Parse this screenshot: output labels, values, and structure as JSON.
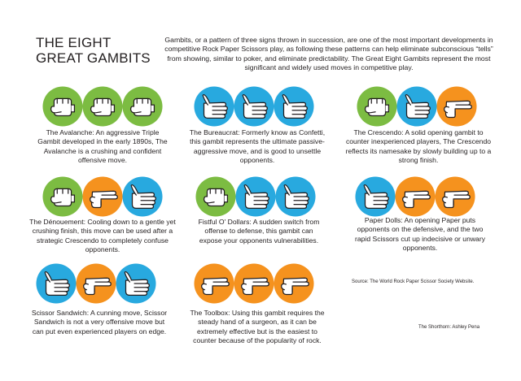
{
  "title": "THE EIGHT GREAT GAMBITS",
  "intro": "Gambits, or a pattern of three signs thrown in succession, are one of the most important developments in competitive Rock Paper Scissors play, as following these patterns can help eliminate subconscious “tells” from showing, similar to poker, and eliminate predictability. The Great Eight Gambits represent the most significant and widely used moves in competitive play.",
  "colors": {
    "rock": "#7cbc42",
    "paper": "#28a9df",
    "scissors": "#f5921e",
    "text": "#231f20"
  },
  "gambits": [
    {
      "description": "The Avalanche: An aggressive Triple Gambit developed in the early 1890s, The Avalanche is a crushing and confident offensive move.",
      "signs": [
        "rock",
        "rock",
        "rock"
      ]
    },
    {
      "description": "The Bureaucrat: Formerly know as Confetti, this gambit represents the ultimate passive-aggressive move, and is good to unsettle opponents.",
      "signs": [
        "paper",
        "paper",
        "paper"
      ]
    },
    {
      "description": "The Crescendo: A solid opening gambit to counter inexperienced players, The Crescendo reflects its namesake by slowly building up to a strong finish.",
      "signs": [
        "rock",
        "paper",
        "scissors"
      ]
    },
    {
      "description": "The Dénouement: Cooling down to a gentle yet crushing finish, this move can be used after a strategic Crescendo to completely confuse opponents.",
      "signs": [
        "rock",
        "scissors",
        "paper"
      ]
    },
    {
      "description": "Fistful O' Dollars: A sudden switch from offense to defense, this gambit can expose your opponents vulnerabilities.",
      "signs": [
        "rock",
        "paper",
        "paper"
      ]
    },
    {
      "description": "Paper Dolls: An opening Paper puts opponents on the defensive, and the two rapid Scissors cut up indecisive or unwary opponents.",
      "signs": [
        "paper",
        "scissors",
        "scissors"
      ]
    },
    {
      "description": "Scissor Sandwich: A cunning move, Scissor Sandwich is not a very offensive move but can put even experienced players on edge.",
      "signs": [
        "paper",
        "scissors",
        "paper"
      ]
    },
    {
      "description": "The Toolbox: Using this gambit requires the steady hand of a surgeon, as it can be extremely effective but is the easiest to counter because of the popularity of rock.",
      "signs": [
        "scissors",
        "scissors",
        "scissors"
      ]
    }
  ],
  "source": "Source: The World Rock Paper Scissor Society Website.",
  "credit": "The Shorthorn: Ashley Pena"
}
